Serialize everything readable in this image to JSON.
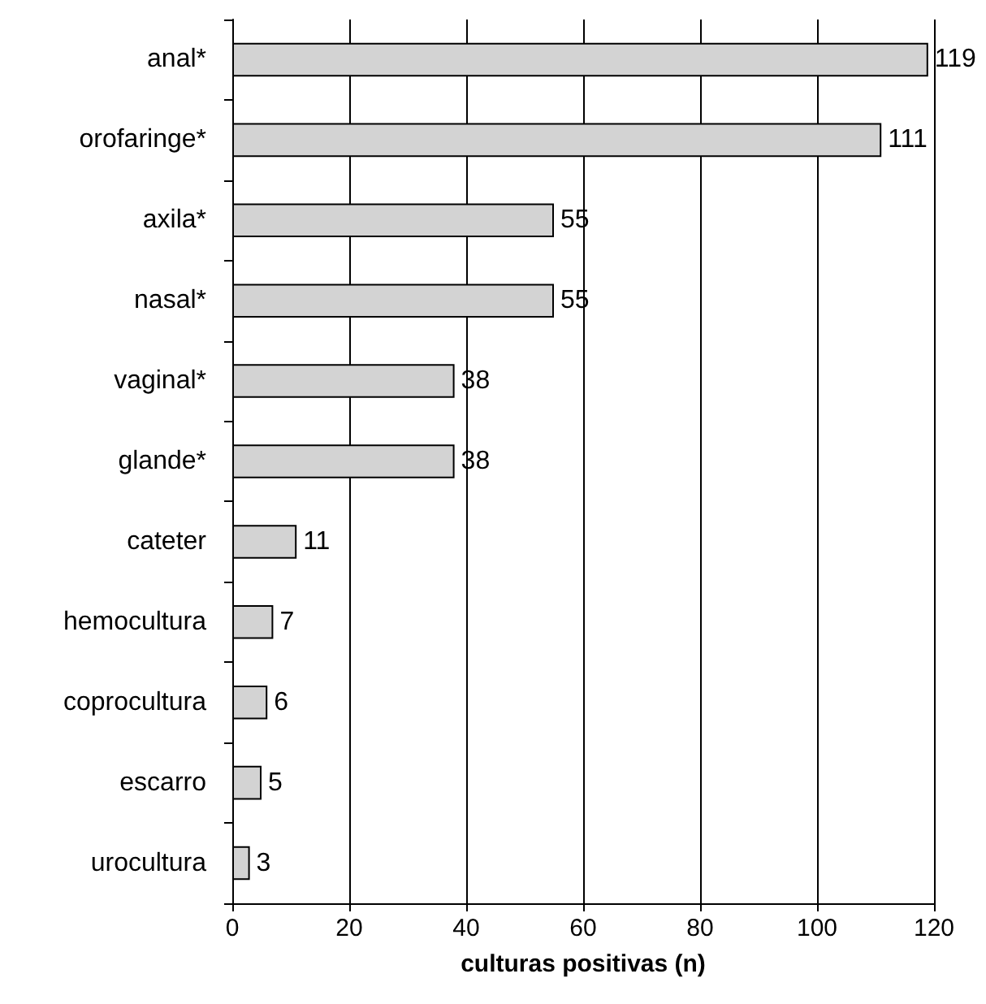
{
  "chart_data": {
    "type": "bar",
    "orientation": "horizontal",
    "xlabel": "culturas positivas (n)",
    "categories": [
      "anal*",
      "orofaringe*",
      "axila*",
      "nasal*",
      "vaginal*",
      "glande*",
      "cateter",
      "hemocultura",
      "coprocultura",
      "escarro",
      "urocultura"
    ],
    "values": [
      119,
      111,
      55,
      55,
      38,
      38,
      11,
      7,
      6,
      5,
      3
    ],
    "color": "#d3d3d3",
    "xlim": [
      0,
      120
    ],
    "xticks": [
      0,
      20,
      40,
      60,
      80,
      100,
      120
    ],
    "grid": "x",
    "data_labels": true
  }
}
